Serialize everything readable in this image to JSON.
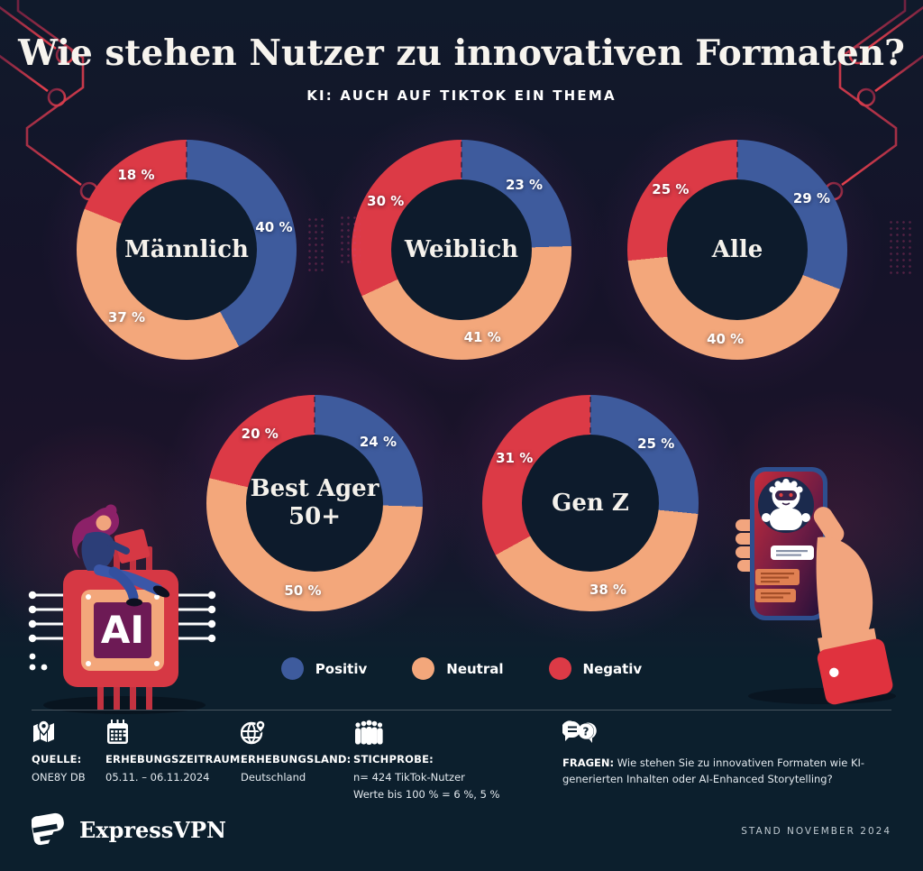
{
  "header": {
    "title": "Wie stehen Nutzer zu innovativen Formaten?",
    "subtitle": "KI: AUCH AUF TIKTOK EIN THEMA"
  },
  "chart_data": {
    "type": "donut",
    "start_angle": "top",
    "direction": "clockwise",
    "legend_position": "bottom-center",
    "legend": [
      {
        "name": "Positiv",
        "color": "#3e5b9d"
      },
      {
        "name": "Neutral",
        "color": "#f3a77b"
      },
      {
        "name": "Negativ",
        "color": "#dc3a46"
      }
    ],
    "charts": [
      {
        "id": "maennlich",
        "title": "Männlich",
        "segments": [
          {
            "name": "Positiv",
            "value": 40,
            "label": "40 %"
          },
          {
            "name": "Neutral",
            "value": 37,
            "label": "37 %"
          },
          {
            "name": "Negativ",
            "value": 18,
            "label": "18 %"
          }
        ]
      },
      {
        "id": "weiblich",
        "title": "Weiblich",
        "segments": [
          {
            "name": "Positiv",
            "value": 23,
            "label": "23 %"
          },
          {
            "name": "Neutral",
            "value": 41,
            "label": "41 %"
          },
          {
            "name": "Negativ",
            "value": 30,
            "label": "30 %"
          }
        ]
      },
      {
        "id": "alle",
        "title": "Alle",
        "segments": [
          {
            "name": "Positiv",
            "value": 29,
            "label": "29 %"
          },
          {
            "name": "Neutral",
            "value": 40,
            "label": "40 %"
          },
          {
            "name": "Negativ",
            "value": 25,
            "label": "25 %"
          }
        ]
      },
      {
        "id": "best-ager",
        "title": "Best Ager\n50+",
        "segments": [
          {
            "name": "Positiv",
            "value": 24,
            "label": "24 %"
          },
          {
            "name": "Neutral",
            "value": 50,
            "label": "50 %"
          },
          {
            "name": "Negativ",
            "value": 20,
            "label": "20 %"
          }
        ]
      },
      {
        "id": "gen-z",
        "title": "Gen Z",
        "segments": [
          {
            "name": "Positiv",
            "value": 25,
            "label": "25 %"
          },
          {
            "name": "Neutral",
            "value": 38,
            "label": "38 %"
          },
          {
            "name": "Negativ",
            "value": 31,
            "label": "31 %"
          }
        ]
      }
    ]
  },
  "footer": {
    "source": {
      "heading": "QUELLE:",
      "value": "ONE8Y DB"
    },
    "period": {
      "heading": "ERHEBUNGSZEITRAUM:",
      "value": "05.11. – 06.11.2024"
    },
    "country": {
      "heading": "ERHEBUNGSLAND:",
      "value": "Deutschland"
    },
    "sample": {
      "heading": "STICHPROBE:",
      "value_line1": "n= 424 TikTok-Nutzer",
      "value_line2": "Werte bis 100 % = 6 %, 5 %"
    },
    "questions": {
      "heading": "FRAGEN:",
      "value": "Wie stehen Sie zu innovativen Formaten wie KI-generierten Inhalten oder AI-Enhanced Storytelling?"
    }
  },
  "bottom_bar": {
    "brand": "ExpressVPN",
    "stand": "STAND NOVEMBER 2024"
  },
  "illustrations": {
    "chip_label": "AI"
  }
}
